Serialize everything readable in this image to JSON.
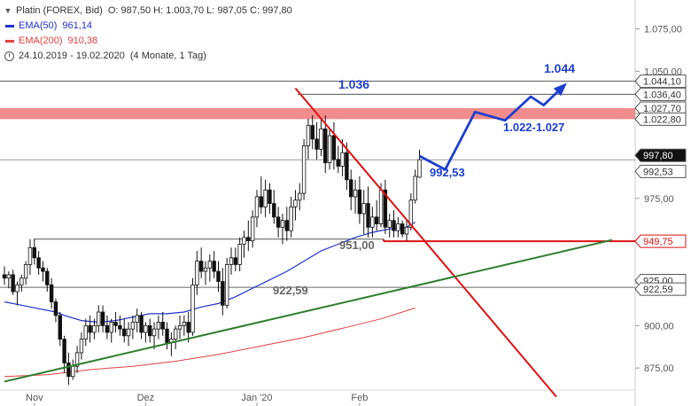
{
  "instrument": {
    "name": "Platin (FOREX, Bid)",
    "ohlc": "O: 987,50  H: 1.003,70  L: 987,05  C: 997,80"
  },
  "indicators": [
    {
      "label": "EMA(50)",
      "value": "961,14",
      "color": "#2233cc"
    },
    {
      "label": "EMA(200)",
      "value": "910,38",
      "color": "#e04040"
    }
  ],
  "period": {
    "range": "24.10.2019 - 19.02.2020",
    "span": "(4 Monate, 1 Tag)"
  },
  "chart_data": {
    "type": "candlestick",
    "ylim": [
      862,
      1092
    ],
    "y_ticks": [
      "875,00",
      "900,00",
      "925,00",
      "950,00",
      "975,00",
      "1.000,00",
      "1.025,00",
      "1.050,00",
      "1.075,00"
    ],
    "y_tick_values": [
      875,
      900,
      925,
      950,
      975,
      1000,
      1025,
      1050,
      1075
    ],
    "x_ticks": [
      "Nov",
      "Dez",
      "Jan '20",
      "Feb"
    ],
    "x_tick_index": [
      7,
      33,
      59,
      83
    ],
    "candles": [
      [
        930,
        935,
        924,
        928
      ],
      [
        928,
        932,
        922,
        930
      ],
      [
        930,
        933,
        918,
        920
      ],
      [
        920,
        926,
        912,
        924
      ],
      [
        924,
        930,
        920,
        928
      ],
      [
        928,
        938,
        924,
        936
      ],
      [
        936,
        951,
        930,
        946
      ],
      [
        946,
        951,
        936,
        940
      ],
      [
        940,
        944,
        930,
        934
      ],
      [
        934,
        938,
        926,
        932
      ],
      [
        932,
        934,
        920,
        924
      ],
      [
        924,
        928,
        910,
        914
      ],
      [
        914,
        916,
        902,
        906
      ],
      [
        906,
        908,
        888,
        892
      ],
      [
        892,
        894,
        872,
        878
      ],
      [
        878,
        884,
        865,
        870
      ],
      [
        870,
        880,
        868,
        876
      ],
      [
        876,
        888,
        872,
        884
      ],
      [
        884,
        896,
        880,
        892
      ],
      [
        892,
        904,
        888,
        900
      ],
      [
        900,
        906,
        890,
        896
      ],
      [
        896,
        904,
        892,
        900
      ],
      [
        900,
        912,
        896,
        908
      ],
      [
        908,
        912,
        896,
        900
      ],
      [
        900,
        906,
        892,
        896
      ],
      [
        896,
        904,
        890,
        902
      ],
      [
        902,
        908,
        896,
        900
      ],
      [
        900,
        906,
        894,
        898
      ],
      [
        898,
        904,
        890,
        894
      ],
      [
        894,
        902,
        888,
        898
      ],
      [
        898,
        906,
        892,
        902
      ],
      [
        902,
        910,
        896,
        906
      ],
      [
        906,
        908,
        892,
        896
      ],
      [
        896,
        902,
        890,
        900
      ],
      [
        900,
        904,
        890,
        894
      ],
      [
        894,
        902,
        886,
        898
      ],
      [
        898,
        906,
        892,
        902
      ],
      [
        902,
        908,
        894,
        898
      ],
      [
        898,
        902,
        886,
        890
      ],
      [
        890,
        896,
        882,
        892
      ],
      [
        892,
        900,
        886,
        898
      ],
      [
        898,
        906,
        892,
        900
      ],
      [
        900,
        906,
        894,
        902
      ],
      [
        902,
        908,
        890,
        896
      ],
      [
        896,
        928,
        894,
        924
      ],
      [
        924,
        944,
        918,
        938
      ],
      [
        938,
        946,
        928,
        932
      ],
      [
        932,
        938,
        924,
        934
      ],
      [
        934,
        942,
        926,
        938
      ],
      [
        938,
        944,
        928,
        932
      ],
      [
        932,
        938,
        920,
        926
      ],
      [
        926,
        934,
        906,
        912
      ],
      [
        912,
        940,
        910,
        936
      ],
      [
        936,
        946,
        930,
        940
      ],
      [
        940,
        946,
        932,
        936
      ],
      [
        936,
        952,
        932,
        948
      ],
      [
        948,
        956,
        940,
        952
      ],
      [
        952,
        962,
        944,
        950
      ],
      [
        950,
        968,
        946,
        964
      ],
      [
        964,
        980,
        958,
        976
      ],
      [
        976,
        988,
        966,
        970
      ],
      [
        970,
        986,
        964,
        980
      ],
      [
        980,
        984,
        966,
        972
      ],
      [
        972,
        980,
        960,
        964
      ],
      [
        964,
        970,
        952,
        958
      ],
      [
        958,
        966,
        948,
        962
      ],
      [
        962,
        970,
        950,
        956
      ],
      [
        956,
        976,
        952,
        970
      ],
      [
        970,
        980,
        962,
        974
      ],
      [
        974,
        984,
        968,
        978
      ],
      [
        978,
        1010,
        974,
        1006
      ],
      [
        1006,
        1022,
        998,
        1018
      ],
      [
        1018,
        1024,
        1004,
        1010
      ],
      [
        1010,
        1020,
        998,
        1004
      ],
      [
        1004,
        1022,
        1000,
        1016
      ],
      [
        1016,
        1024,
        990,
        996
      ],
      [
        996,
        1016,
        992,
        1012
      ],
      [
        1012,
        1020,
        992,
        998
      ],
      [
        998,
        1006,
        990,
        994
      ],
      [
        994,
        1010,
        988,
        1002
      ],
      [
        1002,
        1008,
        980,
        986
      ],
      [
        986,
        992,
        968,
        976
      ],
      [
        976,
        986,
        966,
        980
      ],
      [
        980,
        988,
        960,
        966
      ],
      [
        966,
        980,
        954,
        972
      ],
      [
        972,
        982,
        952,
        958
      ],
      [
        958,
        970,
        952,
        964
      ],
      [
        964,
        974,
        956,
        960
      ],
      [
        960,
        984,
        958,
        980
      ],
      [
        980,
        986,
        954,
        958
      ],
      [
        958,
        966,
        952,
        962
      ],
      [
        962,
        968,
        952,
        956
      ],
      [
        956,
        964,
        952,
        960
      ],
      [
        960,
        962,
        952,
        954
      ],
      [
        954,
        962,
        950,
        958
      ],
      [
        958,
        978,
        956,
        974
      ],
      [
        974,
        992,
        972,
        988
      ],
      [
        987.5,
        1003.7,
        987.05,
        997.8
      ]
    ],
    "ema50": [
      [
        0,
        914
      ],
      [
        4,
        912
      ],
      [
        8,
        910
      ],
      [
        12,
        908
      ],
      [
        14,
        906
      ],
      [
        18,
        903
      ],
      [
        22,
        902
      ],
      [
        26,
        903
      ],
      [
        30,
        905
      ],
      [
        34,
        907
      ],
      [
        38,
        907
      ],
      [
        42,
        908
      ],
      [
        46,
        911
      ],
      [
        50,
        913
      ],
      [
        54,
        917
      ],
      [
        58,
        922
      ],
      [
        62,
        927
      ],
      [
        66,
        932
      ],
      [
        70,
        938
      ],
      [
        74,
        944
      ],
      [
        78,
        948
      ],
      [
        82,
        952
      ],
      [
        86,
        955
      ],
      [
        90,
        957
      ],
      [
        94,
        958
      ],
      [
        96,
        961
      ]
    ],
    "ema200": [
      [
        0,
        870
      ],
      [
        10,
        871
      ],
      [
        20,
        874
      ],
      [
        30,
        876
      ],
      [
        40,
        879
      ],
      [
        50,
        883
      ],
      [
        60,
        888
      ],
      [
        70,
        893
      ],
      [
        80,
        899
      ],
      [
        88,
        904
      ],
      [
        96,
        910.4
      ]
    ],
    "horizontal_levels": [
      {
        "label": "1.044,10",
        "value": 1044.1,
        "color": "#555555"
      },
      {
        "label": "1.036,40",
        "value": 1036.4,
        "color": "#555555"
      },
      {
        "label": "1.027,70",
        "value": 1027.7,
        "color": "#555555"
      },
      {
        "label": "1.022,80",
        "value": 1022.8,
        "color": "#555555"
      },
      {
        "label": "997,80",
        "value": 997.8,
        "color": "#222222"
      },
      {
        "label": "992,53",
        "value": 992.5,
        "color": "#555555"
      },
      {
        "label": "949,75",
        "value": 949.75,
        "color": "#dd1111"
      },
      {
        "label": "925,00",
        "value": 925.0,
        "color": "#555555"
      },
      {
        "label": "922,59",
        "value": 922.6,
        "color": "#555555"
      }
    ],
    "resistance_zone": [
      1022.8,
      1027.7
    ],
    "annotations": [
      {
        "text": "1.036",
        "color": "#1d3fcf"
      },
      {
        "text": "1.044",
        "color": "#1d3fcf"
      },
      {
        "text": "1.022-1.027",
        "color": "#1d3fcf"
      },
      {
        "text": "992,53",
        "color": "#1d3fcf"
      },
      {
        "text": "951,00",
        "color": "#666666"
      },
      {
        "text": "922,59",
        "color": "#666666"
      }
    ],
    "projection_path": [
      [
        97,
        1000
      ],
      [
        103,
        992
      ],
      [
        110,
        1026
      ],
      [
        117,
        1021
      ],
      [
        123,
        1035
      ],
      [
        126,
        1030
      ],
      [
        131,
        1042
      ]
    ],
    "trendlines": [
      {
        "color": "#e01010",
        "from": [
          68,
          1040
        ],
        "to": [
          129,
          858
        ]
      },
      {
        "color": "#2e7d2e",
        "from": [
          0,
          867
        ],
        "to": [
          142,
          950.5
        ]
      }
    ],
    "colors": {
      "up": "#ffffff",
      "down": "#111111",
      "ema50": "#2233cc",
      "ema200": "#e04040"
    }
  }
}
